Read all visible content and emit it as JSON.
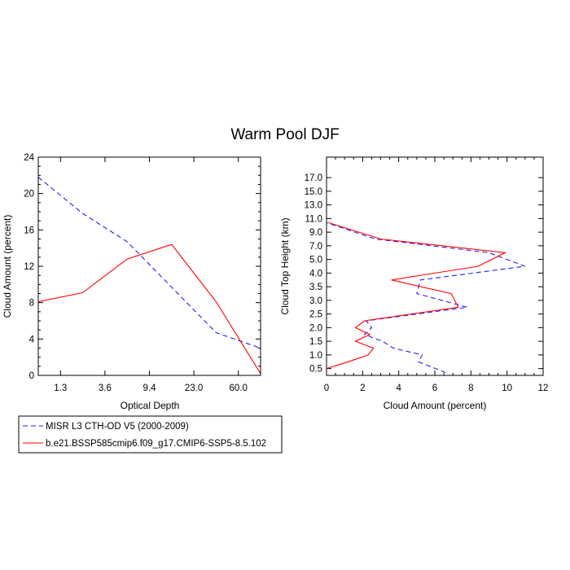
{
  "figure": {
    "title": "Warm Pool DJF"
  },
  "chart_data": [
    {
      "type": "line",
      "xlabel": "Optical Depth",
      "ylabel": "Cloud Amount (percent)",
      "x_tick_labels": [
        "1.3",
        "3.6",
        "9.4",
        "23.0",
        "60.0"
      ],
      "x_bin_count": 6,
      "ylim": [
        0,
        24
      ],
      "y_ticks": [
        0,
        4,
        8,
        12,
        16,
        20,
        24
      ],
      "series": [
        {
          "name": "MISR L3 CTH-OD V5 (2000-2009)",
          "color": "#1f1fff",
          "dash": "dashed",
          "x": [
            0,
            1,
            2,
            3,
            4,
            5
          ],
          "values": [
            21.8,
            17.8,
            14.7,
            9.7,
            4.7,
            3.0
          ]
        },
        {
          "name": "b.e21.BSSP585cmip6.f09_g17.CMIP6-SSP5-8.5.102",
          "color": "#ff0000",
          "dash": "solid",
          "x": [
            0,
            1,
            2,
            3,
            4,
            5
          ],
          "values": [
            8.1,
            9.1,
            12.8,
            14.4,
            8.1,
            0.2
          ]
        }
      ]
    },
    {
      "type": "line",
      "xlabel": "Cloud Amount (percent)",
      "ylabel": "Cloud Top Height (km)",
      "xlim": [
        0,
        12
      ],
      "x_ticks": [
        0,
        2,
        4,
        6,
        8,
        10,
        12
      ],
      "y_tick_labels": [
        "0.5",
        "1.0",
        "1.5",
        "2.0",
        "2.5",
        "3.0",
        "3.5",
        "4.0",
        "5.0",
        "7.0",
        "9.0",
        "11.0",
        "13.0",
        "15.0",
        "17.0"
      ],
      "y_level_count": 16,
      "series": [
        {
          "name": "MISR L3 CTH-OD V5 (2000-2009)",
          "color": "#1f1fff",
          "dash": "dashed",
          "x": [
            6.6,
            5.1,
            5.3,
            3.7,
            3.1,
            2.1,
            2.5,
            2.2,
            7.8,
            5.0,
            5.2,
            11.0,
            9.0,
            2.7,
            0.0
          ],
          "levels": [
            -0.3,
            0.5,
            1.0,
            1.5,
            2.0,
            2.5,
            3.0,
            3.5,
            4.5,
            5.5,
            6.5,
            7.5,
            8.5,
            9.5,
            10.7
          ]
        },
        {
          "name": "b.e21.BSSP585cmip6.f09_g17.CMIP6-SSP5-8.5.102",
          "color": "#ff0000",
          "dash": "solid",
          "x": [
            0.0,
            1.2,
            2.3,
            2.6,
            1.6,
            2.4,
            1.6,
            2.1,
            7.3,
            6.9,
            3.6,
            8.4,
            9.9,
            3.0,
            0.1
          ],
          "levels": [
            0.0,
            0.5,
            1.0,
            1.5,
            2.0,
            2.5,
            3.0,
            3.5,
            4.5,
            5.5,
            6.5,
            7.5,
            8.5,
            9.5,
            10.7
          ]
        }
      ]
    }
  ]
}
